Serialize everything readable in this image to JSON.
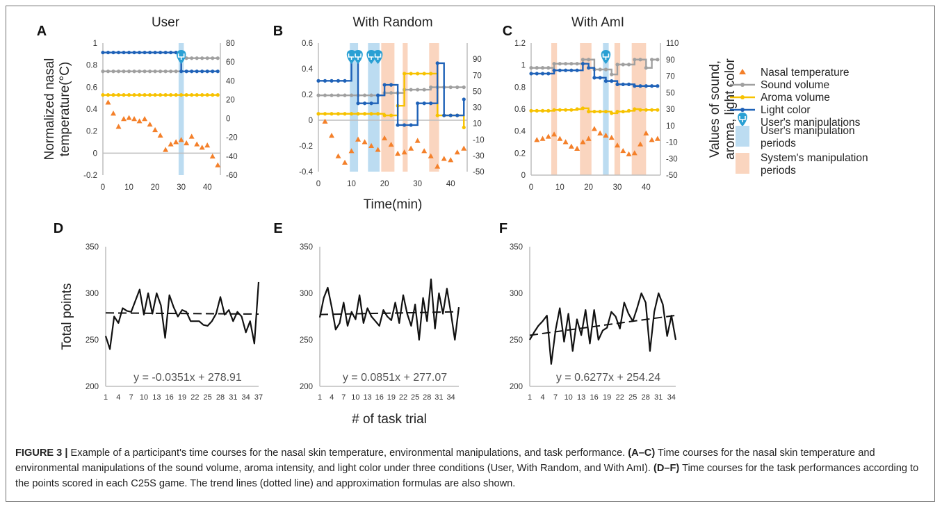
{
  "chart_data": [
    {
      "type": "line",
      "panel": "A",
      "title": "User",
      "ylabel_left": [
        "Normalized nasal",
        "temperature(°C)"
      ],
      "ylim_left": [
        -0.2,
        1
      ],
      "yticks_left": [
        "1",
        "0.8",
        "0.6",
        "0.4",
        "0.2",
        "0",
        "-0.2"
      ],
      "ylim_right": [
        -60,
        80
      ],
      "yticks_right": [
        "80",
        "60",
        "40",
        "20",
        "0",
        "-20",
        "-40",
        "-60"
      ],
      "xlim": [
        0,
        45
      ],
      "xticks": [
        "0",
        "10",
        "20",
        "30",
        "40"
      ],
      "user_marks": [
        30
      ],
      "user_periods": [
        [
          29,
          31
        ]
      ],
      "system_periods": [],
      "series": [
        {
          "name": "Nasal temperature",
          "axis": "left",
          "x": [
            2,
            4,
            6,
            8,
            10,
            12,
            14,
            16,
            18,
            20,
            22,
            24,
            26,
            28,
            30,
            32,
            34,
            36,
            38,
            40,
            42,
            44
          ],
          "values": [
            0.46,
            0.36,
            0.24,
            0.31,
            0.32,
            0.31,
            0.29,
            0.31,
            0.26,
            0.21,
            0.16,
            0.03,
            0.08,
            0.1,
            0.12,
            0.09,
            0.15,
            0.08,
            0.05,
            0.07,
            -0.03,
            -0.11
          ]
        },
        {
          "name": "Sound volume",
          "axis": "right",
          "step": true,
          "x": [
            0,
            2,
            4,
            6,
            8,
            10,
            12,
            14,
            16,
            18,
            20,
            22,
            24,
            26,
            28,
            30,
            32,
            34,
            36,
            38,
            40,
            42,
            44
          ],
          "values": [
            50,
            50,
            50,
            50,
            50,
            50,
            50,
            50,
            50,
            50,
            50,
            50,
            50,
            50,
            50,
            64,
            64,
            64,
            64,
            64,
            64,
            64,
            64
          ]
        },
        {
          "name": "Aroma volume",
          "axis": "right",
          "step": true,
          "x": [
            0,
            2,
            4,
            6,
            8,
            10,
            12,
            14,
            16,
            18,
            20,
            22,
            24,
            26,
            28,
            30,
            32,
            34,
            36,
            38,
            40,
            42,
            44
          ],
          "values": [
            25,
            25,
            25,
            25,
            25,
            25,
            25,
            25,
            25,
            25,
            25,
            25,
            25,
            25,
            25,
            25,
            25,
            25,
            25,
            25,
            25,
            25,
            25
          ]
        },
        {
          "name": "Light color",
          "axis": "right",
          "step": true,
          "x": [
            0,
            2,
            4,
            6,
            8,
            10,
            12,
            14,
            16,
            18,
            20,
            22,
            24,
            26,
            28,
            30,
            32,
            34,
            36,
            38,
            40,
            42,
            44
          ],
          "values": [
            70,
            70,
            70,
            70,
            70,
            70,
            70,
            70,
            70,
            70,
            70,
            70,
            70,
            70,
            70,
            50,
            50,
            50,
            50,
            50,
            50,
            50,
            50
          ]
        }
      ]
    },
    {
      "type": "line",
      "panel": "B",
      "title": "With Random",
      "xlabel": "Time(min)",
      "ylim_left": [
        -0.4,
        0.6
      ],
      "yticks_left": [
        "0.6",
        "0.4",
        "0.2",
        "0",
        "-0.2",
        "-0.4"
      ],
      "ylim_right": [
        -50,
        110
      ],
      "yticks_right": [
        "90",
        "70",
        "50",
        "30",
        "10",
        "-10",
        "-30",
        "-50"
      ],
      "xlim": [
        0,
        45
      ],
      "xticks": [
        "0",
        "10",
        "20",
        "30",
        "40"
      ],
      "user_marks": [
        10,
        12,
        16,
        18
      ],
      "user_periods": [
        [
          9.5,
          12
        ],
        [
          15,
          18.5
        ]
      ],
      "system_periods": [
        [
          19,
          23
        ],
        [
          25.5,
          27
        ],
        [
          33.5,
          36.5
        ]
      ],
      "series": [
        {
          "name": "Nasal temperature",
          "axis": "left",
          "x": [
            2,
            4,
            6,
            8,
            10,
            12,
            14,
            16,
            18,
            20,
            22,
            24,
            26,
            28,
            30,
            32,
            34,
            36,
            38,
            40,
            42,
            44
          ],
          "values": [
            -0.01,
            -0.12,
            -0.28,
            -0.33,
            -0.24,
            -0.15,
            -0.17,
            -0.2,
            -0.23,
            -0.14,
            -0.19,
            -0.26,
            -0.25,
            -0.22,
            -0.16,
            -0.24,
            -0.28,
            -0.36,
            -0.3,
            -0.31,
            -0.25,
            -0.22
          ]
        },
        {
          "name": "Sound volume",
          "axis": "right",
          "step": true,
          "x": [
            0,
            2,
            4,
            6,
            8,
            10,
            12,
            14,
            16,
            18,
            20,
            22,
            24,
            26,
            28,
            30,
            32,
            34,
            36,
            38,
            40,
            42,
            44
          ],
          "values": [
            45,
            45,
            45,
            45,
            45,
            45,
            45,
            45,
            45,
            45,
            48,
            48,
            48,
            52,
            52,
            52,
            52,
            55,
            55,
            55,
            55,
            55,
            55
          ]
        },
        {
          "name": "Aroma volume",
          "axis": "right",
          "step": true,
          "x": [
            0,
            2,
            4,
            6,
            8,
            10,
            12,
            14,
            16,
            18,
            20,
            22,
            24,
            26,
            28,
            30,
            32,
            34,
            36,
            38,
            40,
            42,
            44
          ],
          "values": [
            22,
            22,
            22,
            22,
            22,
            22,
            22,
            22,
            22,
            22,
            20,
            20,
            32,
            72,
            72,
            72,
            72,
            72,
            20,
            20,
            20,
            20,
            5
          ]
        },
        {
          "name": "Light color",
          "axis": "right",
          "step": true,
          "x": [
            0,
            2,
            4,
            6,
            8,
            10,
            12,
            14,
            16,
            18,
            20,
            22,
            24,
            26,
            28,
            30,
            32,
            34,
            36,
            38,
            40,
            42,
            44
          ],
          "values": [
            63,
            63,
            63,
            63,
            63,
            95,
            35,
            35,
            35,
            45,
            58,
            58,
            8,
            8,
            8,
            35,
            35,
            35,
            85,
            20,
            20,
            20,
            40
          ]
        }
      ]
    },
    {
      "type": "line",
      "panel": "C",
      "title": "With AmI",
      "ylabel_right": [
        "Values of sound,",
        "aroma, light color"
      ],
      "ylim_left": [
        0,
        1.2
      ],
      "yticks_left": [
        "1.2",
        "1",
        "0.8",
        "0.6",
        "0.4",
        "0.2",
        "0"
      ],
      "ylim_right": [
        -50,
        110
      ],
      "yticks_right": [
        "110",
        "90",
        "70",
        "50",
        "30",
        "10",
        "-10",
        "-30",
        "-50"
      ],
      "xlim": [
        0,
        45
      ],
      "xticks": [
        "0",
        "10",
        "20",
        "30",
        "40"
      ],
      "user_marks": [
        26
      ],
      "user_periods": [
        [
          25,
          27
        ]
      ],
      "system_periods": [
        [
          7,
          9
        ],
        [
          17,
          21
        ],
        [
          29,
          31
        ],
        [
          35,
          40
        ]
      ],
      "series": [
        {
          "name": "Nasal temperature",
          "axis": "left",
          "x": [
            2,
            4,
            6,
            8,
            10,
            12,
            14,
            16,
            18,
            20,
            22,
            24,
            26,
            28,
            30,
            32,
            34,
            36,
            38,
            40,
            42,
            44
          ],
          "values": [
            0.32,
            0.33,
            0.35,
            0.37,
            0.33,
            0.3,
            0.26,
            0.24,
            0.3,
            0.33,
            0.42,
            0.38,
            0.36,
            0.34,
            0.27,
            0.22,
            0.19,
            0.2,
            0.28,
            0.38,
            0.32,
            0.33
          ]
        },
        {
          "name": "Sound volume",
          "axis": "right",
          "step": true,
          "x": [
            0,
            2,
            4,
            6,
            8,
            10,
            12,
            14,
            16,
            18,
            20,
            22,
            24,
            26,
            28,
            30,
            32,
            34,
            36,
            38,
            40,
            42,
            44
          ],
          "values": [
            80,
            80,
            80,
            80,
            85,
            85,
            85,
            85,
            85,
            90,
            90,
            78,
            78,
            78,
            72,
            84,
            84,
            84,
            90,
            90,
            80,
            90,
            90
          ]
        },
        {
          "name": "Aroma volume",
          "axis": "right",
          "step": true,
          "x": [
            0,
            2,
            4,
            6,
            8,
            10,
            12,
            14,
            16,
            18,
            20,
            22,
            24,
            26,
            28,
            30,
            32,
            34,
            36,
            38,
            40,
            42,
            44
          ],
          "values": [
            28,
            28,
            28,
            28,
            29,
            29,
            29,
            29,
            30,
            31,
            27,
            27,
            27,
            27,
            25,
            27,
            27,
            28,
            30,
            29,
            29,
            29,
            29
          ]
        },
        {
          "name": "Light color",
          "axis": "right",
          "step": true,
          "x": [
            0,
            2,
            4,
            6,
            8,
            10,
            12,
            14,
            16,
            18,
            20,
            22,
            24,
            26,
            28,
            30,
            32,
            34,
            36,
            38,
            40,
            42,
            44
          ],
          "values": [
            73,
            73,
            73,
            73,
            77,
            77,
            77,
            77,
            77,
            85,
            80,
            68,
            68,
            64,
            64,
            60,
            60,
            60,
            58,
            58,
            58,
            58,
            58
          ]
        }
      ]
    },
    {
      "type": "line",
      "panel": "D",
      "ylabel": "Total points",
      "ylim": [
        200,
        350
      ],
      "yticks": [
        "350",
        "300",
        "250",
        "200"
      ],
      "xlim": [
        1,
        37
      ],
      "xticks": [
        "1",
        "4",
        "7",
        "10",
        "13",
        "16",
        "19",
        "22",
        "25",
        "28",
        "31",
        "34",
        "37"
      ],
      "equation": "y = -0.0351x + 278.91",
      "trend": {
        "slope": -0.0351,
        "intercept": 278.91
      },
      "series": [
        {
          "name": "Total points",
          "values": [
            254,
            240,
            275,
            268,
            284,
            281,
            280,
            292,
            304,
            277,
            300,
            278,
            300,
            287,
            252,
            298,
            285,
            275,
            282,
            280,
            270,
            270,
            270,
            266,
            265,
            270,
            278,
            296,
            277,
            282,
            270,
            280,
            275,
            258,
            270,
            246,
            312
          ]
        }
      ]
    },
    {
      "type": "line",
      "panel": "E",
      "xlabel": "# of task trial",
      "ylim": [
        200,
        350
      ],
      "yticks": [
        "350",
        "300",
        "250",
        "200"
      ],
      "xlim": [
        1,
        36
      ],
      "xticks": [
        "1",
        "4",
        "7",
        "10",
        "13",
        "16",
        "19",
        "22",
        "25",
        "28",
        "31",
        "34"
      ],
      "equation": "y = 0.0851x + 277.07",
      "trend": {
        "slope": 0.0851,
        "intercept": 277.07
      },
      "series": [
        {
          "name": "Total points",
          "values": [
            274,
            295,
            306,
            285,
            261,
            268,
            290,
            265,
            280,
            272,
            298,
            268,
            284,
            275,
            270,
            265,
            282,
            275,
            271,
            290,
            268,
            298,
            278,
            265,
            288,
            250,
            295,
            270,
            315,
            262,
            300,
            278,
            305,
            279,
            250,
            285
          ]
        }
      ]
    },
    {
      "type": "line",
      "panel": "F",
      "ylim": [
        200,
        350
      ],
      "yticks": [
        "350",
        "300",
        "250",
        "200"
      ],
      "xlim": [
        1,
        35
      ],
      "xticks": [
        "1",
        "4",
        "7",
        "10",
        "13",
        "16",
        "19",
        "22",
        "25",
        "28",
        "31",
        "34"
      ],
      "equation": "y = 0.6277x + 254.24",
      "trend": {
        "slope": 0.6277,
        "intercept": 254.24
      },
      "series": [
        {
          "name": "Total points",
          "values": [
            250,
            258,
            265,
            270,
            276,
            224,
            260,
            284,
            248,
            278,
            238,
            272,
            255,
            282,
            246,
            282,
            250,
            260,
            263,
            280,
            275,
            262,
            290,
            278,
            270,
            284,
            300,
            290,
            238,
            280,
            300,
            288,
            254,
            276,
            250
          ]
        }
      ]
    }
  ],
  "panel_labels": [
    "A",
    "B",
    "C",
    "D",
    "E",
    "F"
  ],
  "legend": {
    "items": [
      {
        "label": "Nasal temperature",
        "kind": "triangle",
        "color": "#f4802a"
      },
      {
        "label": "Sound volume",
        "kind": "line",
        "color": "#a0a0a0"
      },
      {
        "label": "Aroma volume",
        "kind": "line",
        "color": "#f7c200"
      },
      {
        "label": "Light color",
        "kind": "line",
        "color": "#1f62b8"
      },
      {
        "label": "User's manipulations",
        "kind": "pin",
        "color": "#2aa0d4"
      },
      {
        "label": [
          "User's manipulation",
          "periods"
        ],
        "kind": "box",
        "color": "#bcdcf1"
      },
      {
        "label": [
          "System's manipulation",
          "periods"
        ],
        "kind": "box",
        "color": "#fad5bf"
      }
    ]
  },
  "colors": {
    "nasal": "#f4802a",
    "sound": "#a0a0a0",
    "aroma": "#f7c200",
    "light": "#1f62b8",
    "user_pin": "#2aa0d4",
    "user_period": "#bcdcf1",
    "system_period": "#fad5bf",
    "axis": "#bdbdbd"
  },
  "caption": {
    "label": "FIGURE 3 |",
    "text": " Example of a participant's time courses for the nasal skin temperature, environmental manipulations, and task performance. ",
    "ref1": "(A–C)",
    "text1": " Time courses for the nasal skin temperature and environmental manipulations of the sound volume, aroma intensity, and light color under three conditions (User, With Random, and With AmI). ",
    "ref2": "(D–F)",
    "text2": " Time courses for the task performances according to the points scored in each C25S game. The trend lines (dotted line) and approximation formulas are also shown."
  }
}
